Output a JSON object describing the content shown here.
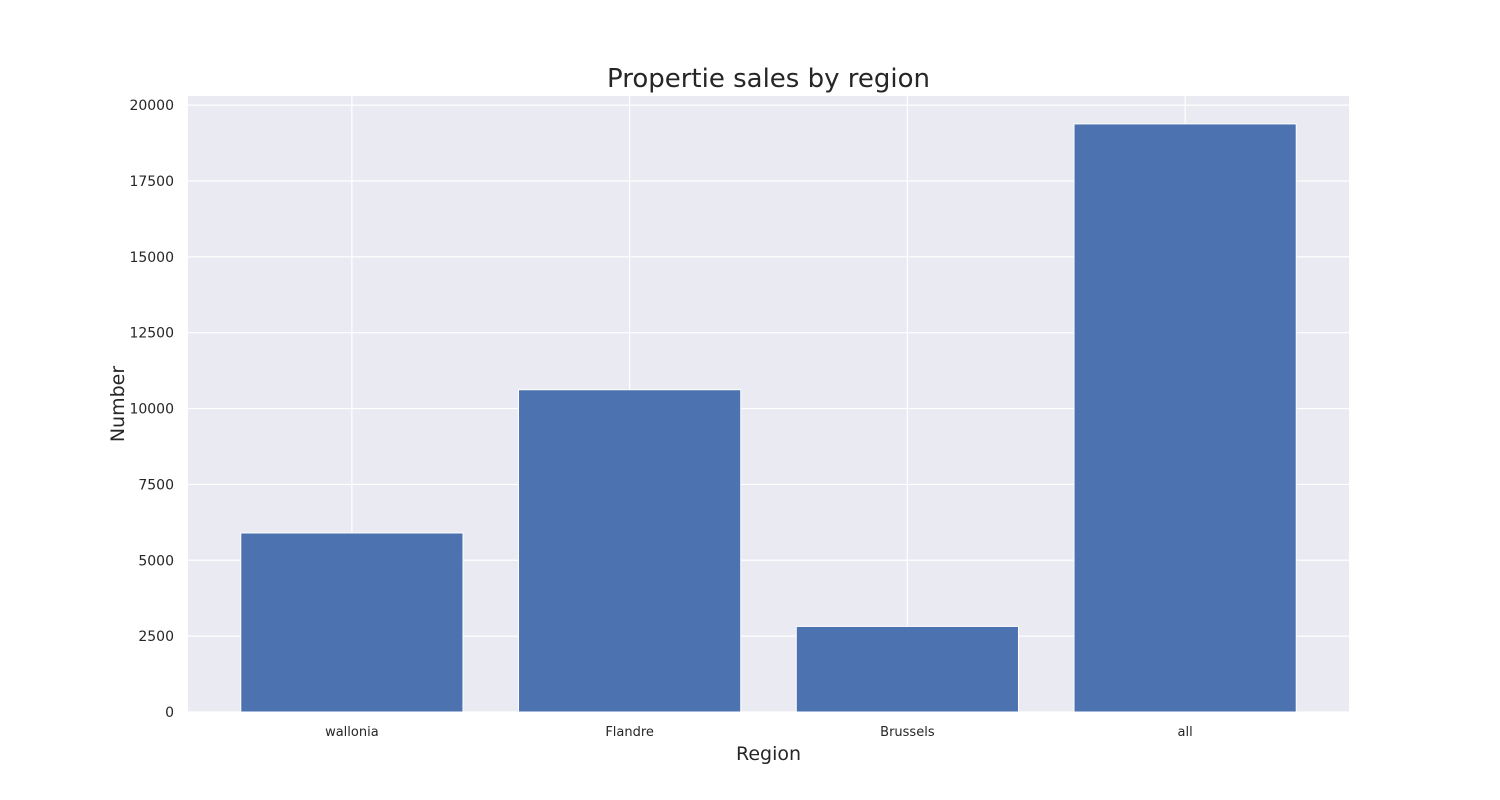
{
  "chart_data": {
    "type": "bar",
    "title": "Propertie sales by region",
    "xlabel": "Region",
    "ylabel": "Number",
    "categories": [
      "wallonia",
      "Flandre",
      "Brussels",
      "all"
    ],
    "values": [
      5900,
      10620,
      2820,
      19380
    ],
    "ylim": [
      0,
      20300
    ],
    "yticks": [
      0,
      2500,
      5000,
      7500,
      10000,
      12500,
      15000,
      17500,
      20000
    ],
    "grid": true,
    "legend": "none",
    "colors": {
      "bar": "#4c72b0",
      "plot_background": "#eaeaf2",
      "grid": "#ffffff",
      "text": "#262626"
    }
  }
}
